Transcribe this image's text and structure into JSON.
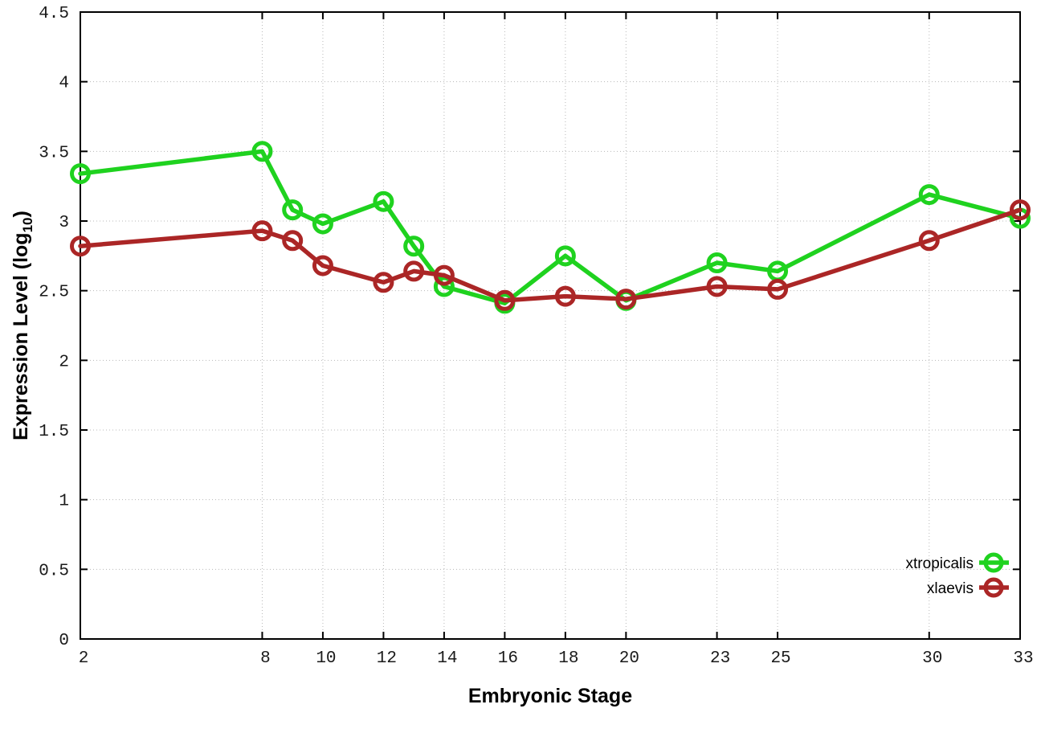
{
  "page": {
    "background": "#ffffff"
  },
  "chart_data": {
    "type": "line",
    "title": "",
    "xlabel": "Embryonic Stage",
    "ylabel": {
      "main": "Expression Level (log",
      "sub": "10",
      "end": ")"
    },
    "xlim": [
      2,
      33
    ],
    "ylim": [
      0,
      4.5
    ],
    "grid": true,
    "grid_style": "dotted",
    "grid_color": "#b8b8b8",
    "axis_color": "#000000",
    "text_color": "#1a1a1a",
    "xtick_values": [
      2,
      8,
      10,
      12,
      14,
      16,
      18,
      20,
      23,
      25,
      30,
      33
    ],
    "xtick_labels": [
      "2",
      "8",
      "10",
      "12",
      "14",
      "16",
      "18",
      "20",
      "23",
      "25",
      "30",
      "33"
    ],
    "ytick_values": [
      0,
      0.5,
      1,
      1.5,
      2,
      2.5,
      3,
      3.5,
      4,
      4.5
    ],
    "ytick_labels": [
      "0",
      "0.5",
      "1",
      "1.5",
      "2",
      "2.5",
      "3",
      "3.5",
      "4",
      "4.5"
    ],
    "x": [
      2,
      8,
      9,
      10,
      12,
      13,
      14,
      16,
      18,
      20,
      23,
      25,
      30,
      33
    ],
    "series": [
      {
        "name": "xtropicalis",
        "color": "#1fd21f",
        "marker": "open-circle",
        "values": [
          3.34,
          3.5,
          3.08,
          2.98,
          3.14,
          2.82,
          2.53,
          2.41,
          2.75,
          2.43,
          2.7,
          2.64,
          3.19,
          3.02
        ]
      },
      {
        "name": "xlaevis",
        "color": "#ab2626",
        "marker": "open-circle",
        "values": [
          2.82,
          2.93,
          2.86,
          2.68,
          2.56,
          2.64,
          2.61,
          2.43,
          2.46,
          2.44,
          2.53,
          2.51,
          2.86,
          3.08
        ]
      }
    ],
    "legend": {
      "position": "inside-bottom-right",
      "entries": [
        "xtropicalis",
        "xlaevis"
      ]
    }
  }
}
